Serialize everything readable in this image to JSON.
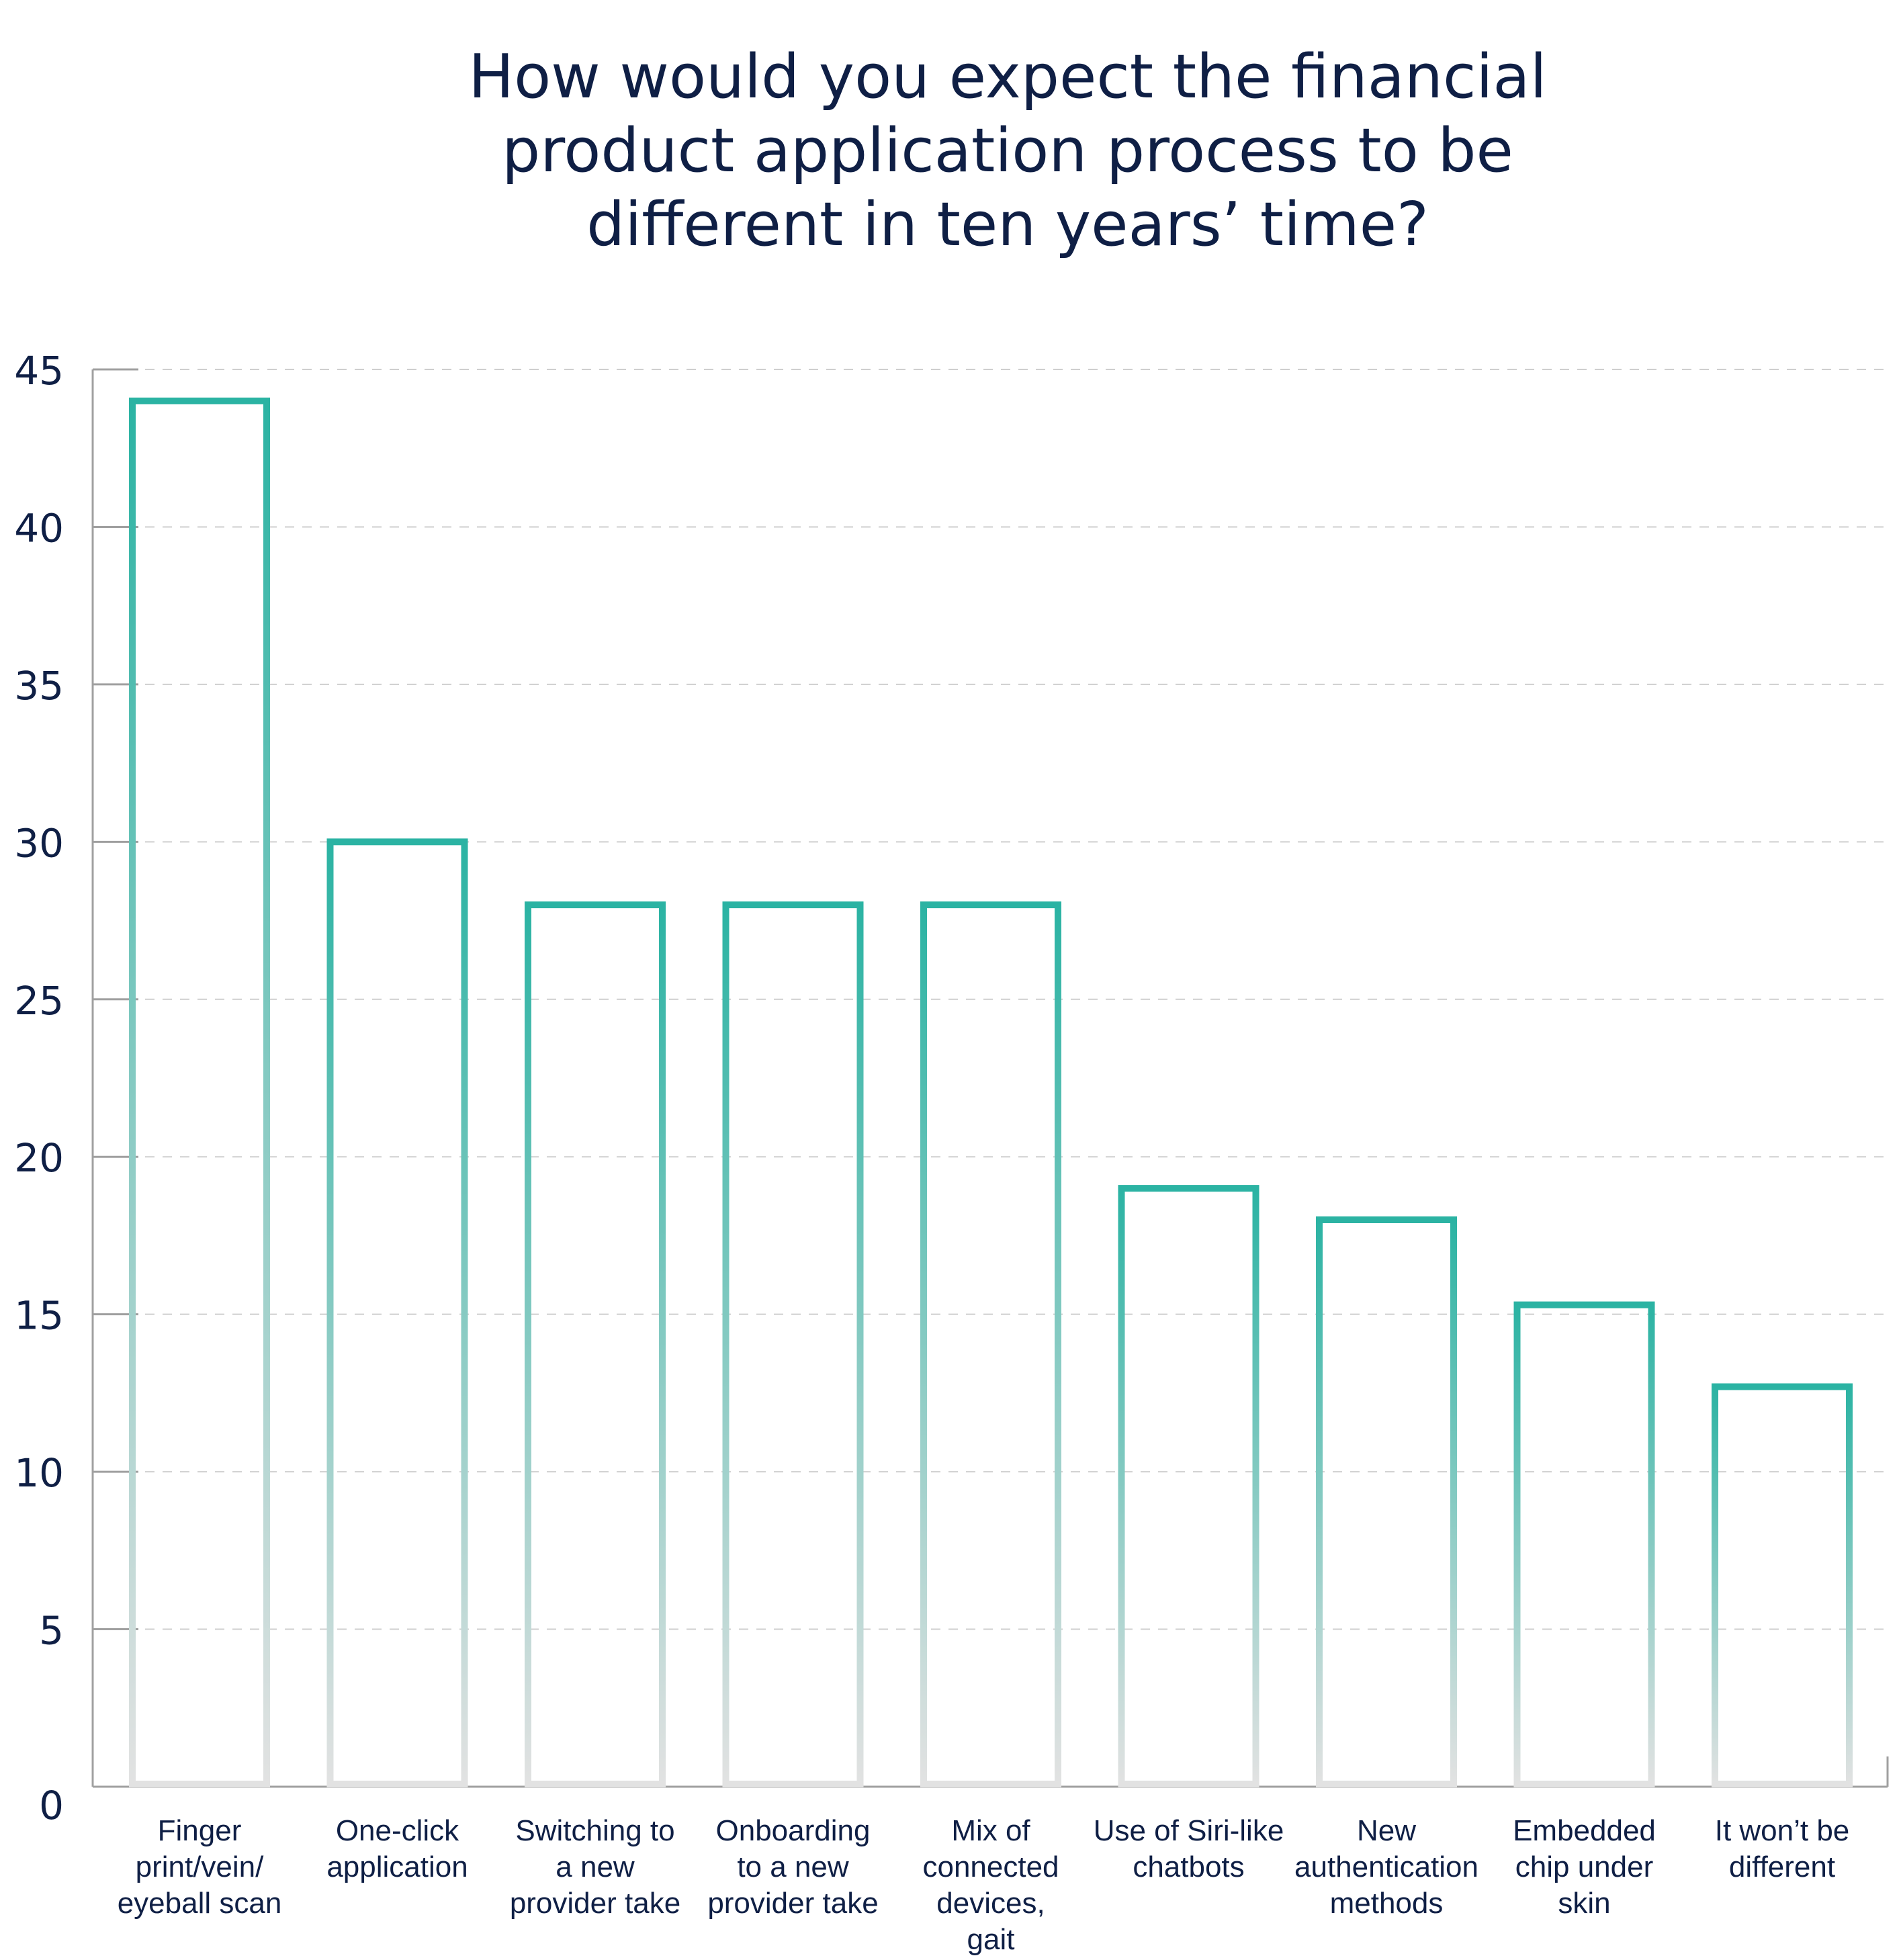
{
  "chart_data": {
    "type": "bar",
    "title": "How would you expect the financial product application process to be different in ten years’ time?",
    "title_lines": [
      "How would you expect the financial",
      "product application process to be",
      "different in ten years’ time?"
    ],
    "categories": [
      "Finger print/vein/ eyeball scan",
      "One-click application",
      "Switching to a new provider take",
      "Onboarding to a new provider take",
      "Mix of connected devices, gait",
      "Use of Siri-like chatbots",
      "New authentication methods",
      "Embedded chip under skin",
      "It won’t be different"
    ],
    "category_lines": [
      [
        "Finger",
        "print/vein/",
        "eyeball scan"
      ],
      [
        "One-click",
        "application"
      ],
      [
        "Switching to",
        "a new",
        "provider take"
      ],
      [
        "Onboarding",
        "to a new",
        "provider take"
      ],
      [
        "Mix of",
        "connected",
        "devices,",
        "gait"
      ],
      [
        "Use of Siri-like",
        "chatbots"
      ],
      [
        "New",
        "authentication",
        "methods"
      ],
      [
        "Embedded",
        "chip under",
        "skin"
      ],
      [
        "It won’t be",
        "different"
      ]
    ],
    "values": [
      44,
      30,
      28,
      28,
      28,
      19,
      18,
      15.3,
      12.7
    ],
    "ylim": [
      0,
      45
    ],
    "yticks": [
      "0",
      "5",
      "10",
      "15",
      "20",
      "25",
      "30",
      "35",
      "40",
      "45"
    ],
    "xlabel": "",
    "ylabel": "",
    "grid": true,
    "legend": "none",
    "colors": {
      "bar_top": "#2bb3a3",
      "bar_bottom": "#e2e2e2",
      "axis": "#a0a0a0",
      "grid": "#cfcfcf",
      "text": "#0f1f45"
    }
  }
}
